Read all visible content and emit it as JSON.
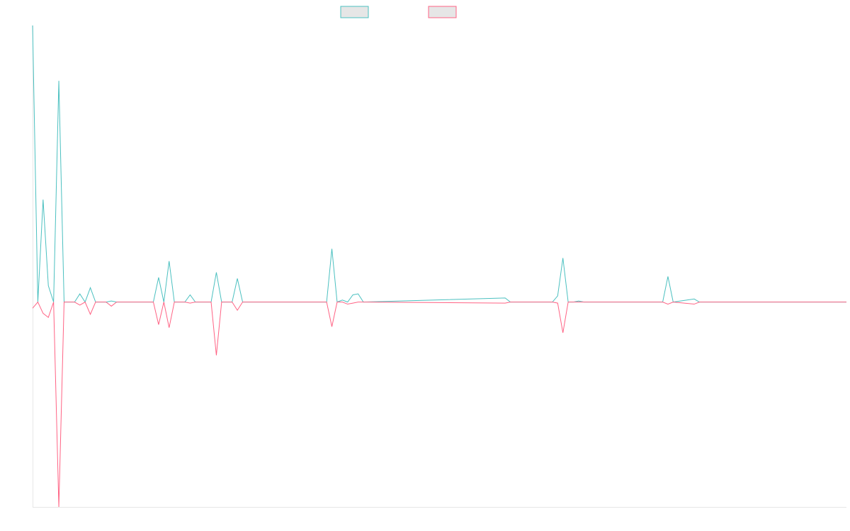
{
  "chart_data": {
    "type": "line",
    "title": "",
    "xlabel": "",
    "ylabel": "",
    "grid": false,
    "legend_position": "top-center",
    "ylim": [
      -1,
      1.35
    ],
    "x_count": 155,
    "series": [
      {
        "label": "",
        "color": "#4bc0c0",
        "legend_fill": "#e6e6e6",
        "points": [
          [
            0,
            1.35
          ],
          [
            1,
            0
          ],
          [
            2,
            0.5
          ],
          [
            3,
            0.08
          ],
          [
            4,
            0
          ],
          [
            5,
            1.08
          ],
          [
            6,
            0
          ],
          [
            8,
            0
          ],
          [
            9,
            0.04
          ],
          [
            10,
            0
          ],
          [
            11,
            0.07
          ],
          [
            12,
            0
          ],
          [
            14,
            0
          ],
          [
            15,
            0.005
          ],
          [
            16,
            0
          ],
          [
            17,
            0
          ],
          [
            18,
            0
          ],
          [
            19,
            0
          ],
          [
            20,
            0
          ],
          [
            23,
            0
          ],
          [
            24,
            0.12
          ],
          [
            25,
            0
          ],
          [
            26,
            0.2
          ],
          [
            27,
            0
          ],
          [
            29,
            0
          ],
          [
            30,
            0.035
          ],
          [
            31,
            0
          ],
          [
            32,
            0
          ],
          [
            34,
            0
          ],
          [
            35,
            0.145
          ],
          [
            36,
            0
          ],
          [
            38,
            0
          ],
          [
            39,
            0.115
          ],
          [
            40,
            0
          ],
          [
            56,
            0
          ],
          [
            57,
            0.26
          ],
          [
            58,
            0
          ],
          [
            59,
            0.01
          ],
          [
            60,
            0
          ],
          [
            61,
            0.035
          ],
          [
            62,
            0.04
          ],
          [
            63,
            0
          ],
          [
            90,
            0.02
          ],
          [
            91,
            0
          ],
          [
            99,
            0
          ],
          [
            100,
            0.03
          ],
          [
            101,
            0.215
          ],
          [
            102,
            0
          ],
          [
            103,
            0
          ],
          [
            104,
            0.005
          ],
          [
            105,
            0
          ],
          [
            120,
            0
          ],
          [
            121,
            0.125
          ],
          [
            122,
            0
          ],
          [
            126,
            0.015
          ],
          [
            127,
            0
          ],
          [
            155,
            0
          ]
        ]
      },
      {
        "label": "",
        "color": "#ff6384",
        "legend_fill": "#e6e6e6",
        "points": [
          [
            0,
            -0.03
          ],
          [
            1,
            0
          ],
          [
            2,
            -0.055
          ],
          [
            3,
            -0.075
          ],
          [
            4,
            0
          ],
          [
            5,
            -1.0
          ],
          [
            6,
            0
          ],
          [
            8,
            0
          ],
          [
            9,
            -0.015
          ],
          [
            10,
            0
          ],
          [
            11,
            -0.06
          ],
          [
            12,
            0
          ],
          [
            14,
            0
          ],
          [
            15,
            -0.02
          ],
          [
            16,
            0
          ],
          [
            17,
            0
          ],
          [
            18,
            0
          ],
          [
            19,
            0
          ],
          [
            20,
            0
          ],
          [
            23,
            0
          ],
          [
            24,
            -0.11
          ],
          [
            25,
            0
          ],
          [
            26,
            -0.125
          ],
          [
            27,
            0
          ],
          [
            29,
            0
          ],
          [
            30,
            -0.005
          ],
          [
            31,
            0
          ],
          [
            32,
            0
          ],
          [
            34,
            0
          ],
          [
            35,
            -0.26
          ],
          [
            36,
            0
          ],
          [
            38,
            0
          ],
          [
            39,
            -0.04
          ],
          [
            40,
            0
          ],
          [
            56,
            0
          ],
          [
            57,
            -0.12
          ],
          [
            58,
            0
          ],
          [
            59,
            0
          ],
          [
            60,
            -0.01
          ],
          [
            61,
            -0.005
          ],
          [
            62,
            0
          ],
          [
            63,
            0
          ],
          [
            90,
            -0.005
          ],
          [
            91,
            0
          ],
          [
            99,
            0
          ],
          [
            100,
            -0.005
          ],
          [
            101,
            -0.15
          ],
          [
            102,
            0
          ],
          [
            103,
            0
          ],
          [
            104,
            0
          ],
          [
            105,
            0
          ],
          [
            120,
            0
          ],
          [
            121,
            -0.01
          ],
          [
            122,
            0
          ],
          [
            126,
            -0.01
          ],
          [
            127,
            0
          ],
          [
            155,
            0
          ]
        ]
      }
    ]
  }
}
